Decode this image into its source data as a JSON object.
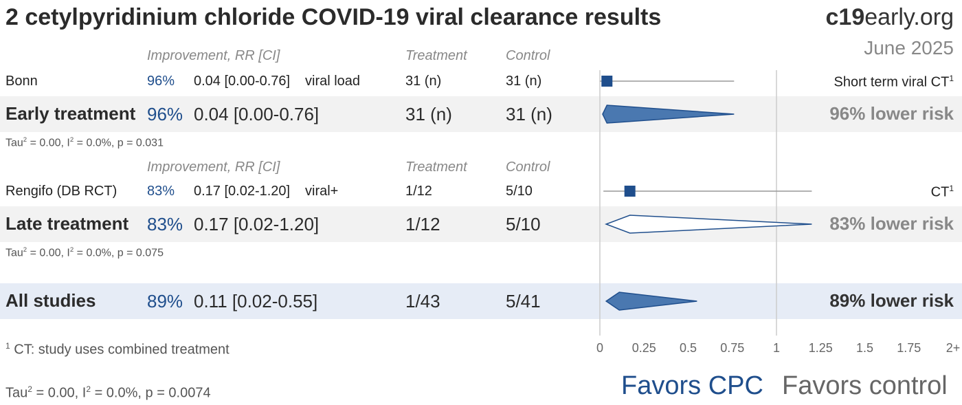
{
  "header": {
    "title": "2 cetylpyridinium chloride COVID-19 viral clearance results",
    "brand_bold": "c19",
    "brand_rest": "early.org",
    "date": "June 2025"
  },
  "columns": {
    "improvement": "Improvement, RR [CI]",
    "treatment": "Treatment",
    "control": "Control"
  },
  "rows": {
    "bonn": {
      "name": "Bonn",
      "improvement": "96%",
      "rr": "0.04 [0.00-0.76]",
      "outcome": "viral load",
      "treatment": "31 (n)",
      "control": "31 (n)",
      "label": "Short term viral CT",
      "label_sup": "1"
    },
    "early": {
      "name": "Early treatment",
      "improvement": "96%",
      "rr": "0.04 [0.00-0.76]",
      "treatment": "31 (n)",
      "control": "31 (n)",
      "risk": "96% lower risk",
      "tau": "2",
      "stats_a": "Tau",
      "stats_b": " = 0.00, I",
      "stats_c": " = 0.0%, p = 0.031"
    },
    "rengifo": {
      "name": "Rengifo (DB RCT)",
      "improvement": "83%",
      "rr": "0.17 [0.02-1.20]",
      "outcome": "viral+",
      "treatment": "1/12",
      "control": "5/10",
      "label": "CT",
      "label_sup": "1"
    },
    "late": {
      "name": "Late treatment",
      "improvement": "83%",
      "rr": "0.17 [0.02-1.20]",
      "treatment": "1/12",
      "control": "5/10",
      "risk": "83% lower risk",
      "stats_a": "Tau",
      "stats_b": " = 0.00, I",
      "stats_c": " = 0.0%, p = 0.075"
    },
    "all": {
      "name": "All studies",
      "improvement": "89%",
      "rr": "0.11 [0.02-0.55]",
      "treatment": "1/43",
      "control": "5/41",
      "risk": "89% lower risk"
    }
  },
  "footer": {
    "note_sup": "1",
    "note": " CT: study uses combined treatment",
    "stats_a": "Tau",
    "stats_b": " = 0.00, I",
    "stats_c": " = 0.0%, p = 0.0074",
    "sq": "2",
    "favors_left": "Favors CPC",
    "favors_right": "Favors control"
  },
  "chart_data": {
    "type": "forest",
    "x_ticks": [
      "0",
      "0.25",
      "0.5",
      "0.75",
      "1",
      "1.25",
      "1.5",
      "1.75",
      "2+"
    ],
    "x_tick_values": [
      0,
      0.25,
      0.5,
      0.75,
      1,
      1.25,
      1.5,
      1.75,
      2
    ],
    "xlim": [
      0,
      2
    ],
    "reference_line": 1,
    "studies": [
      {
        "name": "Bonn",
        "rr": 0.04,
        "ci": [
          0.0,
          0.76
        ],
        "group": "early"
      },
      {
        "name": "Rengifo (DB RCT)",
        "rr": 0.17,
        "ci": [
          0.02,
          1.2
        ],
        "group": "late"
      }
    ],
    "pooled": [
      {
        "name": "Early treatment",
        "rr": 0.04,
        "ci": [
          0.0,
          0.76
        ],
        "style": "filled"
      },
      {
        "name": "Late treatment",
        "rr": 0.17,
        "ci": [
          0.02,
          1.2
        ],
        "style": "outline"
      },
      {
        "name": "All studies",
        "rr": 0.11,
        "ci": [
          0.02,
          0.55
        ],
        "style": "filled"
      }
    ],
    "colors": {
      "accent": "#1f4e8c",
      "fill": "#4a78b0",
      "whisker": "#999999",
      "axis": "#cccccc"
    }
  }
}
